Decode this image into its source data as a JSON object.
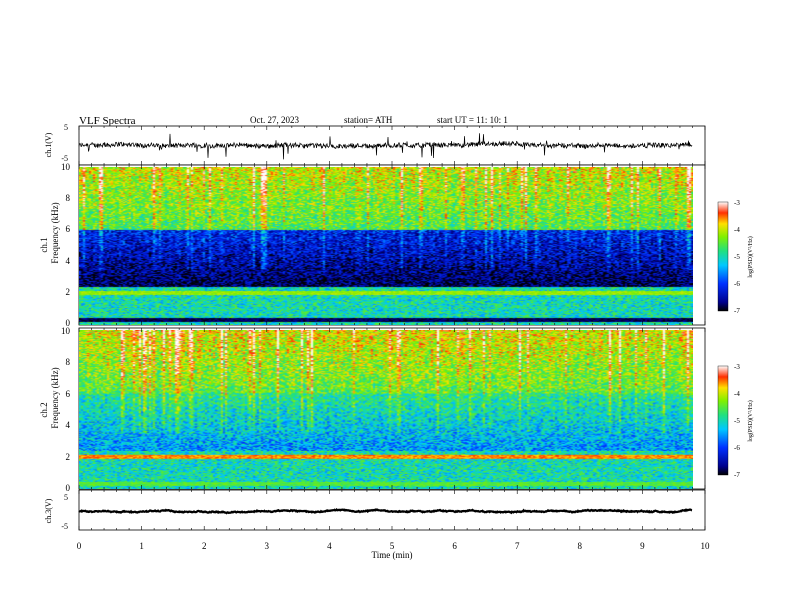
{
  "header": {
    "title": "VLF  Spectra",
    "date": "Oct. 27, 2023",
    "station": "station= ATH",
    "start_ut": "start  UT  =    11: 10: 1"
  },
  "chart_data": [
    {
      "type": "line",
      "name": "ch1-waveform",
      "ylabel": "ch.1(V)",
      "ylim": [
        -5,
        5
      ],
      "yticks": [
        "5",
        "-5"
      ],
      "x_range_min": [
        0,
        9.8
      ],
      "trace_level": 0,
      "noise_amplitude": 1.2
    },
    {
      "type": "heatmap",
      "name": "ch1-spectrogram",
      "ylabel_channel": "ch.1",
      "ylabel": "Frequency  (kHz)",
      "ylim": [
        0,
        10
      ],
      "yticks": [
        "0",
        "2",
        "4",
        "6",
        "8",
        "10"
      ],
      "x_range_min": [
        0,
        9.8
      ],
      "colorbar": {
        "label": "log(PSD)(V²/Hz)",
        "ticks": [
          "-3",
          "-4",
          "-5",
          "-6",
          "-7"
        ],
        "range": [
          -7,
          -3
        ]
      },
      "bands_khz": [
        {
          "freq": 2.0,
          "level": -4.2
        },
        {
          "freq": 0.3,
          "level": -6.8
        }
      ],
      "profile": {
        "high_freq_level": -4.0,
        "mid_freq_level": -6.5,
        "low_freq_level": -5.0
      }
    },
    {
      "type": "heatmap",
      "name": "ch2-spectrogram",
      "ylabel_channel": "ch.2",
      "ylabel": "Frequency  (kHz)",
      "ylim": [
        0,
        10
      ],
      "yticks": [
        "0",
        "2",
        "4",
        "6",
        "8",
        "10"
      ],
      "x_range_min": [
        0,
        9.8
      ],
      "colorbar": {
        "label": "log(PSD)(V²/Hz)",
        "ticks": [
          "-3",
          "-4",
          "-5",
          "-6",
          "-7"
        ],
        "range": [
          -7,
          -3
        ]
      },
      "bands_khz": [
        {
          "freq": 2.0,
          "level": -3.6
        },
        {
          "freq": 0.3,
          "level": -4.5
        }
      ],
      "profile": {
        "high_freq_level": -3.9,
        "mid_freq_level": -5.2,
        "low_freq_level": -5.0
      }
    },
    {
      "type": "line",
      "name": "ch3-waveform",
      "ylabel": "ch.3(V)",
      "ylim": [
        -5,
        5
      ],
      "yticks": [
        "5",
        "-5"
      ],
      "x_range_min": [
        0,
        9.8
      ],
      "trace_level": -0.3,
      "noise_amplitude": 0.15
    }
  ],
  "time_axis": {
    "xlabel": "Time  (min)",
    "xlim": [
      0,
      10
    ],
    "ticks": [
      "0",
      "1",
      "2",
      "3",
      "4",
      "5",
      "6",
      "7",
      "8",
      "9",
      "10"
    ]
  }
}
